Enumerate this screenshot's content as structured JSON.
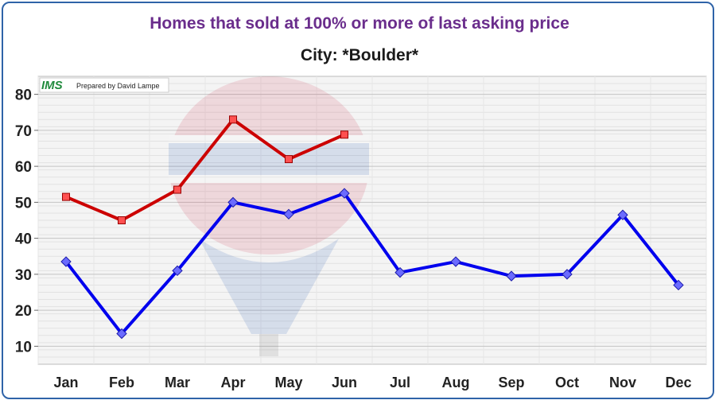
{
  "chart_data": {
    "type": "line",
    "title": "Homes that sold at 100% or more of last asking price",
    "subtitle": "City: *Boulder*",
    "categories": [
      "Jan",
      "Feb",
      "Mar",
      "Apr",
      "May",
      "Jun",
      "Jul",
      "Aug",
      "Sep",
      "Oct",
      "Nov",
      "Dec"
    ],
    "ylim": [
      5,
      85
    ],
    "yticks": [
      10,
      20,
      30,
      40,
      50,
      60,
      70,
      80
    ],
    "grid": true,
    "series": [
      {
        "values": [
          51.5,
          45,
          53.5,
          73,
          62,
          68.8,
          null,
          null,
          null,
          null,
          null,
          null
        ],
        "color": "#cc0000",
        "marker": "square"
      },
      {
        "values": [
          33.5,
          13.5,
          31,
          50,
          46.7,
          52.5,
          30.5,
          33.5,
          29.5,
          30,
          46.5,
          27
        ],
        "color": "#0000ee",
        "marker": "diamond"
      }
    ]
  },
  "badge": {
    "logo": "IMS",
    "text": "Prepared by David Lampe"
  },
  "watermark": "RE/MAX balloon"
}
